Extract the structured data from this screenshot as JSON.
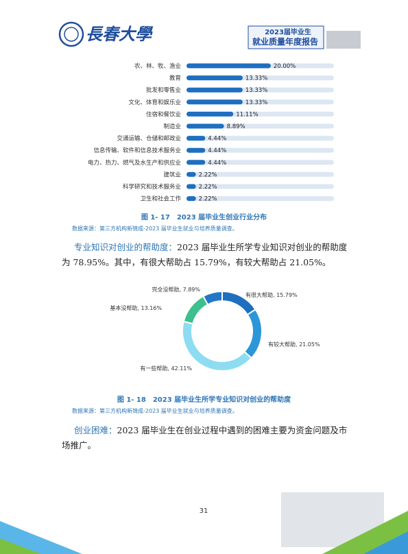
{
  "header": {
    "logo_text": "長春大學",
    "report_year": "2023届毕业生",
    "report_title": "就业质量年度报告"
  },
  "chart_data": [
    {
      "type": "hbar",
      "categories": [
        "农、林、牧、渔业",
        "教育",
        "批发和零售业",
        "文化、体育和娱乐业",
        "住宿和餐饮业",
        "制造业",
        "交通运输、仓储和邮政业",
        "信息传输、软件和信息技术服务业",
        "电力、热力、燃气及水生产和供应业",
        "建筑业",
        "科学研究和技术服务业",
        "卫生和社会工作"
      ],
      "values": [
        20.0,
        13.33,
        13.33,
        13.33,
        11.11,
        8.89,
        4.44,
        4.44,
        4.44,
        2.22,
        2.22,
        2.22
      ],
      "value_labels": [
        "20.00%",
        "13.33%",
        "13.33%",
        "13.33%",
        "11.11%",
        "8.89%",
        "4.44%",
        "4.44%",
        "4.44%",
        "2.22%",
        "2.22%",
        "2.22%"
      ],
      "xlim": [
        0,
        35
      ],
      "color": "#1f6fc0",
      "track_color": "#dde7f3",
      "caption": "图 1- 17　2023 届毕业生创业行业分布",
      "source": "数据来源：第三方机构新锦成-2023 届毕业生就业与培养质量调查。"
    },
    {
      "type": "donut",
      "values": [
        15.79,
        21.05,
        42.11,
        13.16,
        7.89
      ],
      "value_labels": [
        "有很大帮助, 15.79%",
        "有较大帮助, 21.05%",
        "有一些帮助, 42.11%",
        "基本没帮助, 13.16%",
        "完全没帮助, 7.89%"
      ],
      "colors": [
        "#1f6fc0",
        "#2b96d8",
        "#8edcf2",
        "#3dbf8e",
        "#2476c8"
      ],
      "caption": "图 1- 18　2023 届毕业生所学专业知识对创业的帮助度",
      "source": "数据来源：第三方机构新锦成-2023 届毕业生就业与培养质量调查。"
    }
  ],
  "paragraphs": [
    {
      "heading": "专业知识对创业的帮助度：",
      "body": "2023 届毕业生所学专业知识对创业的帮助度为 78.95%。其中，有很大帮助占 15.79%，有较大帮助占 21.05%。"
    },
    {
      "heading": "创业困难：",
      "body": "2023 届毕业生在创业过程中遇到的困难主要为资金问题及市场推广。"
    }
  ],
  "page_number": "31"
}
